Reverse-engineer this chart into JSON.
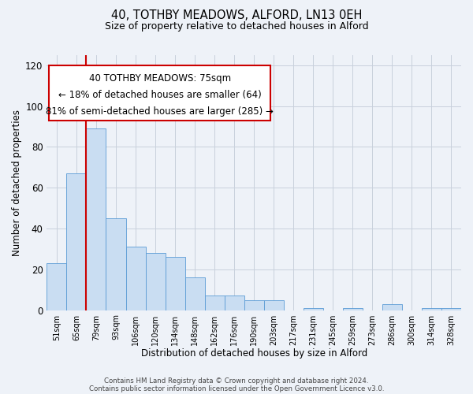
{
  "title_line1": "40, TOTHBY MEADOWS, ALFORD, LN13 0EH",
  "title_line2": "Size of property relative to detached houses in Alford",
  "xlabel": "Distribution of detached houses by size in Alford",
  "ylabel": "Number of detached properties",
  "categories": [
    "51sqm",
    "65sqm",
    "79sqm",
    "93sqm",
    "106sqm",
    "120sqm",
    "134sqm",
    "148sqm",
    "162sqm",
    "176sqm",
    "190sqm",
    "203sqm",
    "217sqm",
    "231sqm",
    "245sqm",
    "259sqm",
    "273sqm",
    "286sqm",
    "300sqm",
    "314sqm",
    "328sqm"
  ],
  "values": [
    23,
    67,
    89,
    45,
    31,
    28,
    26,
    16,
    7,
    7,
    5,
    5,
    0,
    1,
    0,
    1,
    0,
    3,
    0,
    1,
    1
  ],
  "bar_color": "#c9ddf2",
  "bar_edge_color": "#5b9bd5",
  "grid_color": "#c8d0dc",
  "bg_color": "#eef2f8",
  "vline_color": "#cc0000",
  "vline_position": 1.5,
  "ylim": [
    0,
    125
  ],
  "yticks": [
    0,
    20,
    40,
    60,
    80,
    100,
    120
  ],
  "annotation_box_text_line1": "40 TOTHBY MEADOWS: 75sqm",
  "annotation_box_text_line2": "← 18% of detached houses are smaller (64)",
  "annotation_box_text_line3": "81% of semi-detached houses are larger (285) →",
  "footer_line1": "Contains HM Land Registry data © Crown copyright and database right 2024.",
  "footer_line2": "Contains public sector information licensed under the Open Government Licence v3.0."
}
